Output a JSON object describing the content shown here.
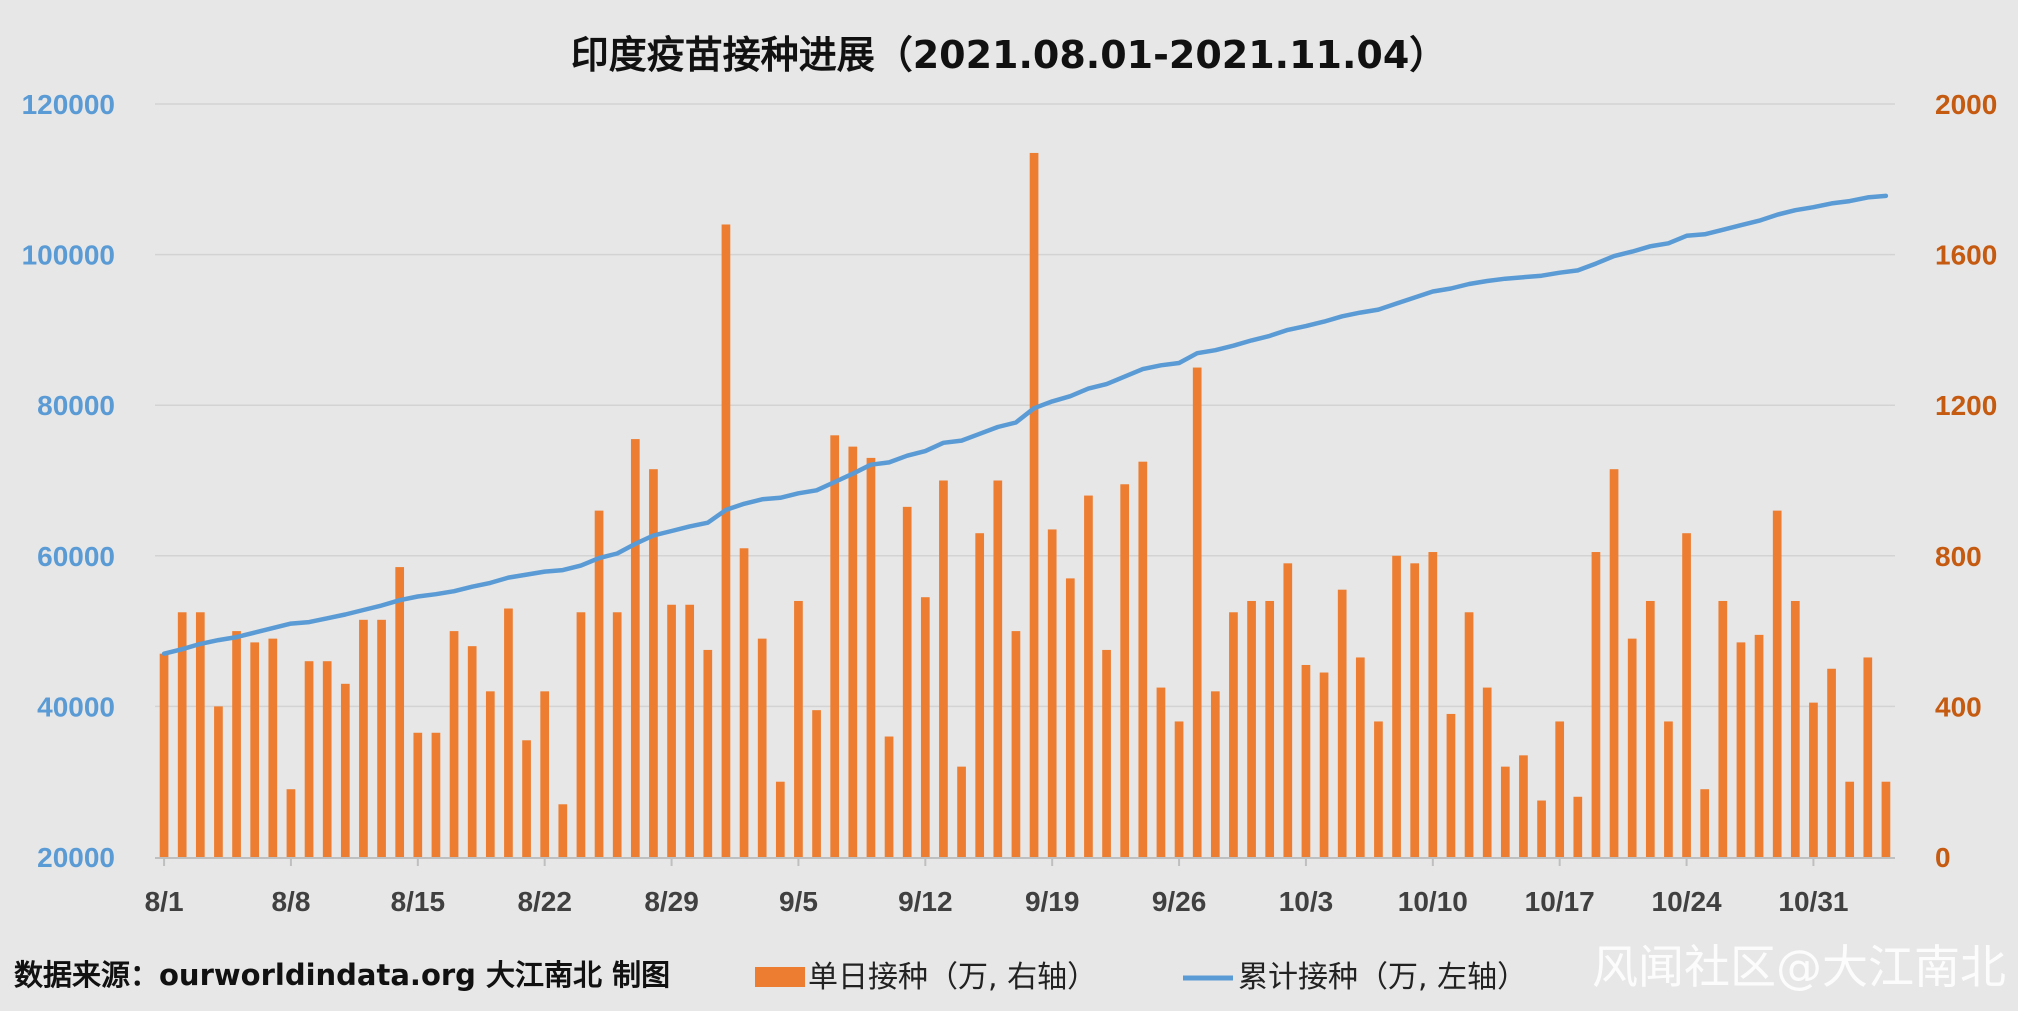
{
  "footer": {
    "source": "数据来源：ourworldindata.org 大江南北 制图",
    "watermark": "风闻社区@大江南北"
  },
  "colors": {
    "background": "#e7e7e7",
    "bar": "#ed7d31",
    "line": "#5b9bd5",
    "left_axis_text": "#5b9bd5",
    "right_axis_text": "#c55a11",
    "gridline": "#d3d3d3"
  },
  "chart_data": {
    "type": "bar",
    "title": "印度疫苗接种进展（2021.08.01-2021.11.04）",
    "x_start": "2021-08-01",
    "x_end": "2021-11-04",
    "xlabel": "",
    "x_tick_labels": [
      "8/1",
      "8/8",
      "8/15",
      "8/22",
      "8/29",
      "9/5",
      "9/12",
      "9/19",
      "9/26",
      "10/3",
      "10/10",
      "10/17",
      "10/24",
      "10/31"
    ],
    "ylabel_left": "",
    "ylim_left": [
      20000,
      120000
    ],
    "yticks_left": [
      "20000",
      "40000",
      "60000",
      "80000",
      "100000",
      "120000"
    ],
    "ylabel_right": "",
    "ylim_right": [
      0,
      2000
    ],
    "yticks_right": [
      "0",
      "400",
      "800",
      "1200",
      "1600",
      "2000"
    ],
    "grid": true,
    "legend_position": "bottom",
    "series": [
      {
        "name": "单日接种（万, 右轴）",
        "type": "bar",
        "axis": "right",
        "color": "#ed7d31",
        "values": [
          540,
          650,
          650,
          400,
          600,
          570,
          580,
          180,
          520,
          520,
          460,
          630,
          630,
          770,
          330,
          330,
          600,
          560,
          440,
          660,
          310,
          440,
          140,
          650,
          920,
          650,
          1110,
          1030,
          670,
          670,
          550,
          1680,
          820,
          580,
          200,
          680,
          390,
          1120,
          1090,
          1060,
          320,
          930,
          690,
          1000,
          240,
          860,
          1000,
          600,
          1870,
          870,
          740,
          960,
          550,
          990,
          1050,
          450,
          360,
          1300,
          440,
          650,
          680,
          680,
          780,
          510,
          490,
          710,
          530,
          360,
          800,
          780,
          810,
          380,
          650,
          450,
          240,
          270,
          150,
          360,
          160,
          810,
          1030,
          580,
          680,
          360,
          860,
          180,
          680,
          570,
          590,
          920,
          680,
          410,
          500,
          200,
          530,
          200
        ]
      },
      {
        "name": "累计接种（万, 左轴）",
        "type": "line",
        "axis": "left",
        "color": "#5b9bd5",
        "values": [
          47000,
          47600,
          48300,
          48800,
          49200,
          49800,
          50400,
          51000,
          51200,
          51700,
          52200,
          52800,
          53400,
          54100,
          54600,
          54900,
          55300,
          55900,
          56400,
          57100,
          57500,
          57900,
          58100,
          58700,
          59700,
          60300,
          61600,
          62700,
          63300,
          63900,
          64400,
          66100,
          66900,
          67500,
          67700,
          68300,
          68700,
          69800,
          70900,
          72100,
          72400,
          73300,
          73900,
          75000,
          75300,
          76200,
          77100,
          77700,
          79600,
          80500,
          81200,
          82200,
          82800,
          83800,
          84800,
          85300,
          85600,
          86900,
          87300,
          87900,
          88600,
          89200,
          90000,
          90500,
          91100,
          91800,
          92300,
          92700,
          93500,
          94300,
          95100,
          95500,
          96100,
          96500,
          96800,
          97000,
          97200,
          97600,
          97900,
          98800,
          99800,
          100400,
          101100,
          101500,
          102500,
          102700,
          103300,
          103900,
          104500,
          105300,
          105900,
          106300,
          106800,
          107100,
          107600,
          107800
        ]
      }
    ]
  }
}
